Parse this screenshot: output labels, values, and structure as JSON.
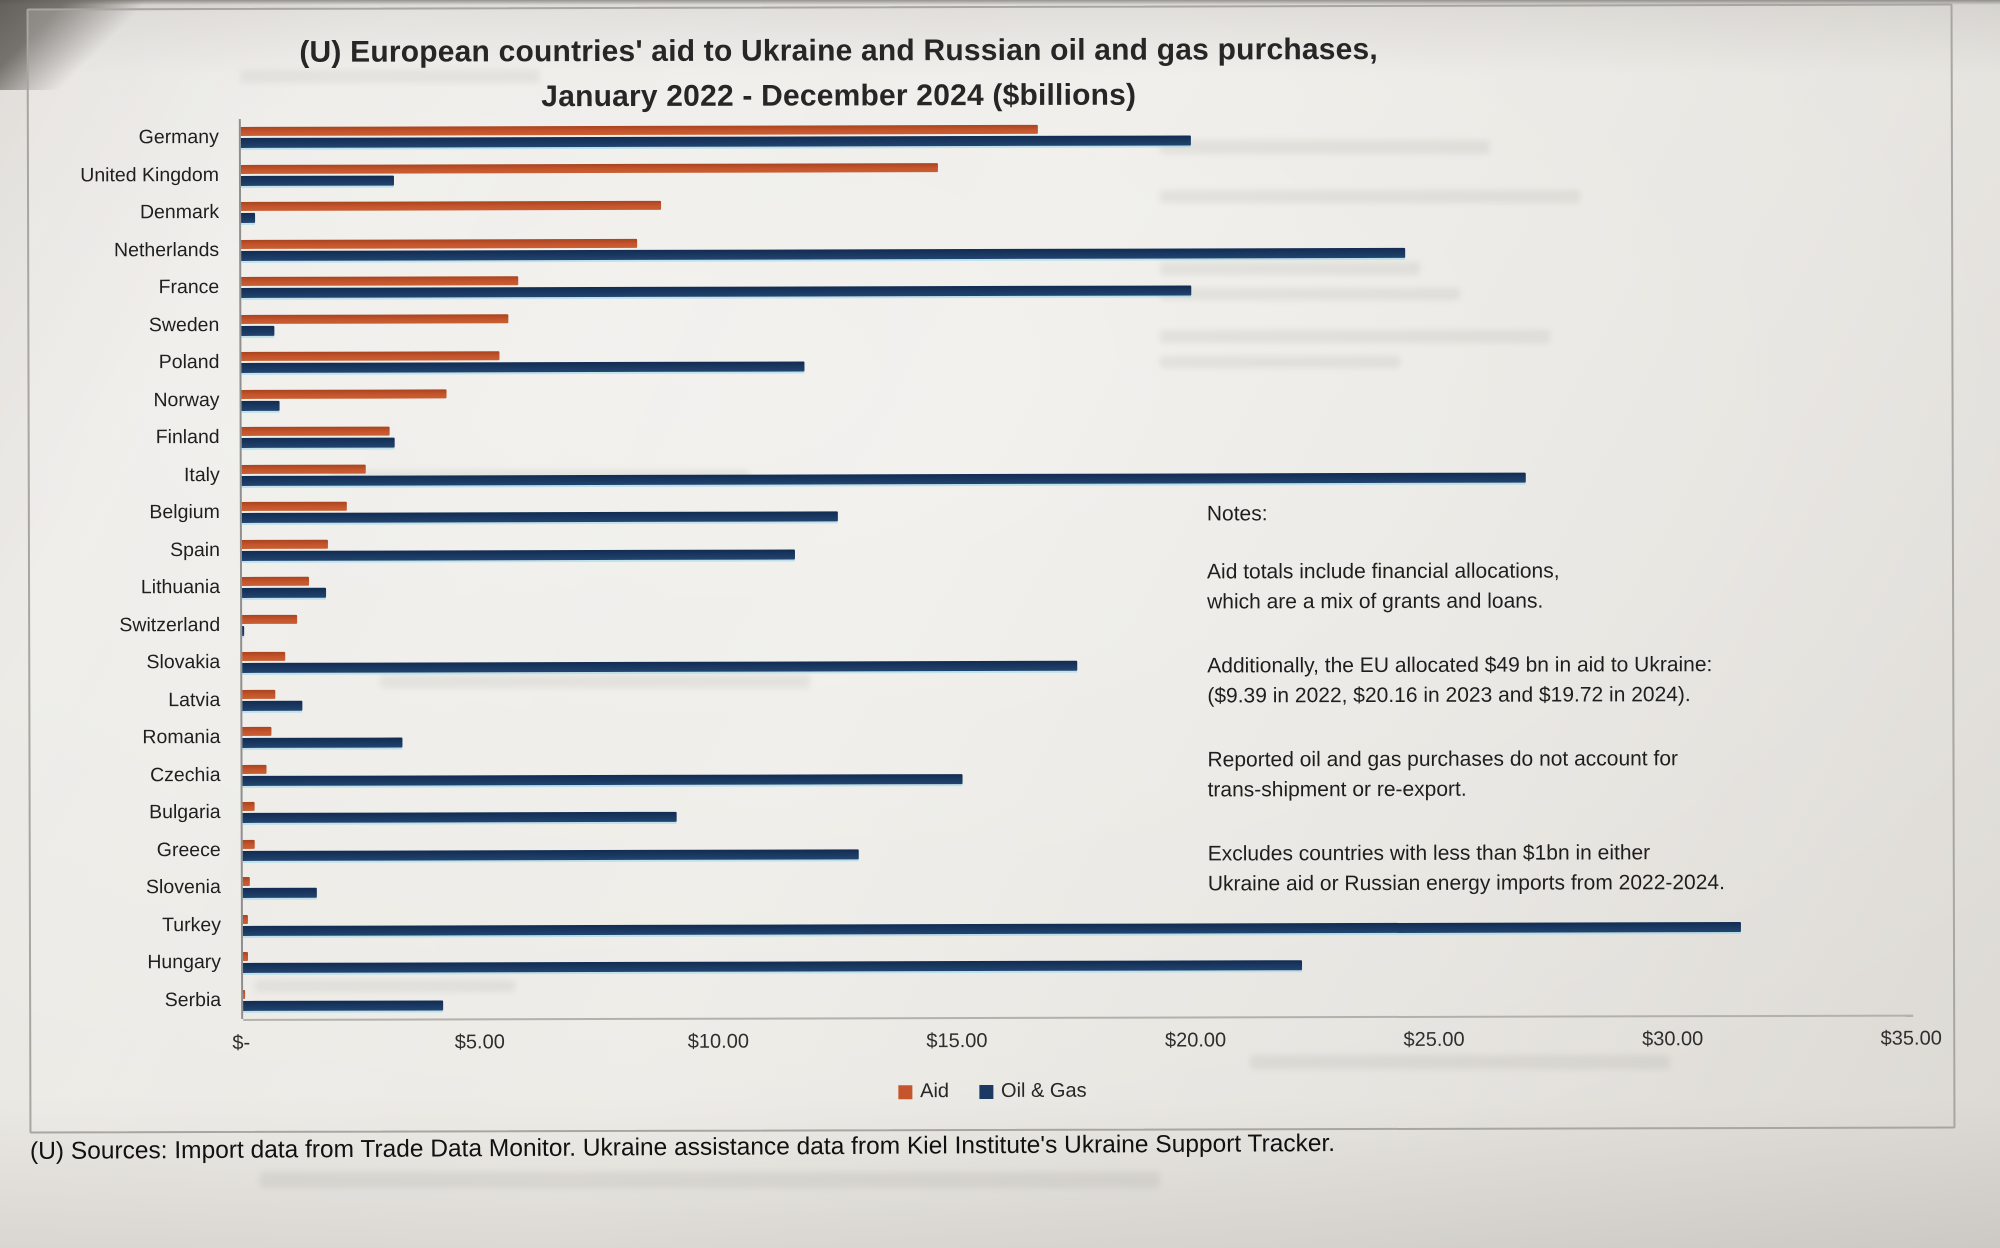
{
  "title": {
    "line1": "(U) European countries' aid to Ukraine and Russian oil and gas purchases,",
    "line2": "January 2022 - December 2024 ($billions)"
  },
  "legend": {
    "aid_label": "Aid",
    "oil_label": "Oil & Gas",
    "aid_color": "#c5552c",
    "oil_color": "#1b3a63"
  },
  "notes": {
    "heading": "Notes:",
    "para1_line1": "Aid totals include financial allocations,",
    "para1_line2": "which are a mix of grants and loans.",
    "para2_line1": "Additionally, the EU allocated $49 bn in aid to Ukraine:",
    "para2_line2": "($9.39 in 2022, $20.16 in 2023 and $19.72 in 2024).",
    "para3_line1": "Reported oil and gas purchases do not account for",
    "para3_line2": "trans-shipment or re-export.",
    "para4_line1": "Excludes countries with less than $1bn in either",
    "para4_line2": "Ukraine aid or Russian energy imports from 2022-2024."
  },
  "source_line": "(U) Sources:  Import data from Trade Data Monitor.  Ukraine assistance data from Kiel Institute's Ukraine Support Tracker.",
  "chart_data": {
    "type": "bar",
    "orientation": "horizontal",
    "title": "(U) European countries' aid to Ukraine and Russian oil and gas purchases, January 2022 - December 2024 ($billions)",
    "xlabel": "$billions",
    "ylabel": "",
    "xlim": [
      0,
      35
    ],
    "x_ticks": [
      {
        "value": 0,
        "label": "$-"
      },
      {
        "value": 5,
        "label": "$5.00"
      },
      {
        "value": 10,
        "label": "$10.00"
      },
      {
        "value": 15,
        "label": "$15.00"
      },
      {
        "value": 20,
        "label": "$20.00"
      },
      {
        "value": 25,
        "label": "$25.00"
      },
      {
        "value": 30,
        "label": "$30.00"
      },
      {
        "value": 35,
        "label": "$35.00"
      }
    ],
    "grid": false,
    "legend_position": "bottom",
    "categories": [
      "Germany",
      "United Kingdom",
      "Denmark",
      "Netherlands",
      "France",
      "Sweden",
      "Poland",
      "Norway",
      "Finland",
      "Italy",
      "Belgium",
      "Spain",
      "Lithuania",
      "Switzerland",
      "Slovakia",
      "Latvia",
      "Romania",
      "Czechia",
      "Bulgaria",
      "Greece",
      "Slovenia",
      "Turkey",
      "Hungary",
      "Serbia"
    ],
    "series": [
      {
        "name": "Aid",
        "color": "#c5552c",
        "values": [
          16.7,
          14.6,
          8.8,
          8.3,
          5.8,
          5.6,
          5.4,
          4.3,
          3.1,
          2.6,
          2.2,
          1.8,
          1.4,
          1.15,
          0.9,
          0.7,
          0.6,
          0.5,
          0.25,
          0.25,
          0.15,
          0.1,
          0.1,
          0.05
        ]
      },
      {
        "name": "Oil & Gas",
        "color": "#1b3a63",
        "values": [
          19.9,
          3.2,
          0.3,
          24.4,
          19.9,
          0.7,
          11.8,
          0.8,
          3.2,
          26.9,
          12.5,
          11.6,
          1.75,
          0.05,
          17.5,
          1.25,
          3.35,
          15.1,
          9.1,
          12.9,
          1.55,
          31.4,
          22.2,
          4.2
        ]
      }
    ]
  }
}
